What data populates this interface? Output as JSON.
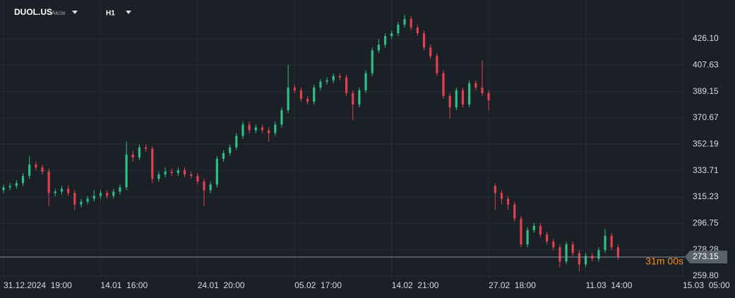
{
  "header": {
    "symbol": "DUOL.US",
    "market": "Akcie",
    "timeframe": "H1"
  },
  "chart_data": {
    "type": "candlestick",
    "up_color": "#2fbf83",
    "down_color": "#e0414f",
    "ylim": [
      257.8,
      453.3
    ],
    "yticks": [
      {
        "value": 259.8,
        "label": "259.80"
      },
      278.28,
      296.75,
      315.23,
      333.71,
      352.19,
      370.67,
      389.15,
      407.63,
      {
        "value": 426.1,
        "label": "426.10"
      }
    ],
    "xlim": [
      0,
      105
    ],
    "xticks": [
      {
        "value": 0,
        "label": "31.12.2024  19:00"
      },
      {
        "value": 15,
        "label": "14.01  16:00"
      },
      {
        "value": 30,
        "label": "24.01  20:00"
      },
      {
        "value": 45,
        "label": "05.02  17:00"
      },
      {
        "value": 60,
        "label": "14.02  21:00"
      },
      {
        "value": 75,
        "label": "27.02  18:00"
      },
      {
        "value": 90,
        "label": "11.03  14:00"
      },
      {
        "value": 105,
        "label": "15.03  05:00"
      }
    ],
    "grid": true,
    "last_price": 273.15,
    "countdown": "31m 00s",
    "open": [
      320,
      322,
      323,
      325,
      330,
      338,
      336,
      333,
      318,
      319,
      321,
      318,
      310,
      312,
      314,
      316,
      318,
      316,
      319,
      322,
      345,
      343,
      350,
      349,
      328,
      331,
      333,
      332,
      334,
      331,
      330,
      326,
      320,
      324,
      342,
      346,
      350,
      358,
      366,
      362,
      364,
      362,
      360,
      366,
      376,
      392,
      390,
      384,
      382,
      392,
      396,
      397,
      400,
      399,
      388,
      380,
      390,
      402,
      418,
      422,
      428,
      430,
      436,
      440,
      434,
      430,
      420,
      414,
      402,
      386,
      378,
      390,
      380,
      395,
      392,
      388,
      323,
      318,
      314,
      310,
      300,
      282,
      292,
      295,
      289,
      284,
      280,
      270,
      282,
      276,
      268,
      274,
      272,
      278,
      288,
      280
    ],
    "high": [
      324,
      325,
      327,
      332,
      344,
      340,
      338,
      335,
      321,
      323,
      323,
      320,
      314,
      316,
      320,
      320,
      320,
      321,
      324,
      354,
      348,
      352,
      352,
      351,
      333,
      336,
      335,
      336,
      336,
      333,
      332,
      328,
      326,
      344,
      348,
      352,
      360,
      368,
      368,
      366,
      366,
      364,
      368,
      378,
      408,
      394,
      392,
      386,
      394,
      398,
      399,
      402,
      402,
      401,
      390,
      392,
      404,
      420,
      426,
      430,
      432,
      438,
      443,
      442,
      436,
      432,
      422,
      416,
      404,
      388,
      392,
      392,
      397,
      397,
      411,
      390,
      325,
      320,
      316,
      312,
      302,
      294,
      297,
      297,
      291,
      286,
      282,
      284,
      284,
      278,
      276,
      276,
      280,
      293,
      290,
      282
    ],
    "low": [
      318,
      320,
      321,
      323,
      328,
      334,
      331,
      309,
      316,
      317,
      316,
      306,
      308,
      310,
      312,
      314,
      314,
      314,
      317,
      320,
      340,
      341,
      347,
      325,
      326,
      329,
      330,
      330,
      329,
      328,
      324,
      309,
      318,
      322,
      340,
      344,
      348,
      356,
      360,
      360,
      360,
      354,
      358,
      364,
      374,
      388,
      382,
      380,
      380,
      390,
      394,
      395,
      397,
      386,
      369,
      378,
      388,
      400,
      416,
      420,
      426,
      428,
      434,
      432,
      428,
      418,
      412,
      400,
      384,
      370,
      376,
      378,
      378,
      390,
      386,
      376,
      306,
      310,
      306,
      298,
      280,
      280,
      290,
      287,
      282,
      278,
      266,
      268,
      274,
      263,
      266,
      270,
      270,
      276,
      278,
      271
    ],
    "close": [
      322,
      323,
      325,
      330,
      338,
      336,
      333,
      318,
      319,
      321,
      318,
      310,
      312,
      314,
      316,
      318,
      316,
      319,
      322,
      345,
      343,
      350,
      349,
      328,
      331,
      333,
      332,
      334,
      331,
      330,
      326,
      320,
      324,
      342,
      346,
      350,
      358,
      366,
      362,
      364,
      362,
      360,
      366,
      376,
      392,
      390,
      384,
      382,
      392,
      396,
      397,
      400,
      399,
      388,
      380,
      390,
      402,
      418,
      422,
      428,
      430,
      436,
      440,
      434,
      430,
      420,
      414,
      402,
      386,
      378,
      390,
      380,
      395,
      392,
      388,
      383,
      318,
      314,
      310,
      300,
      282,
      292,
      295,
      289,
      284,
      280,
      270,
      282,
      276,
      268,
      274,
      272,
      278,
      288,
      280,
      273
    ]
  }
}
